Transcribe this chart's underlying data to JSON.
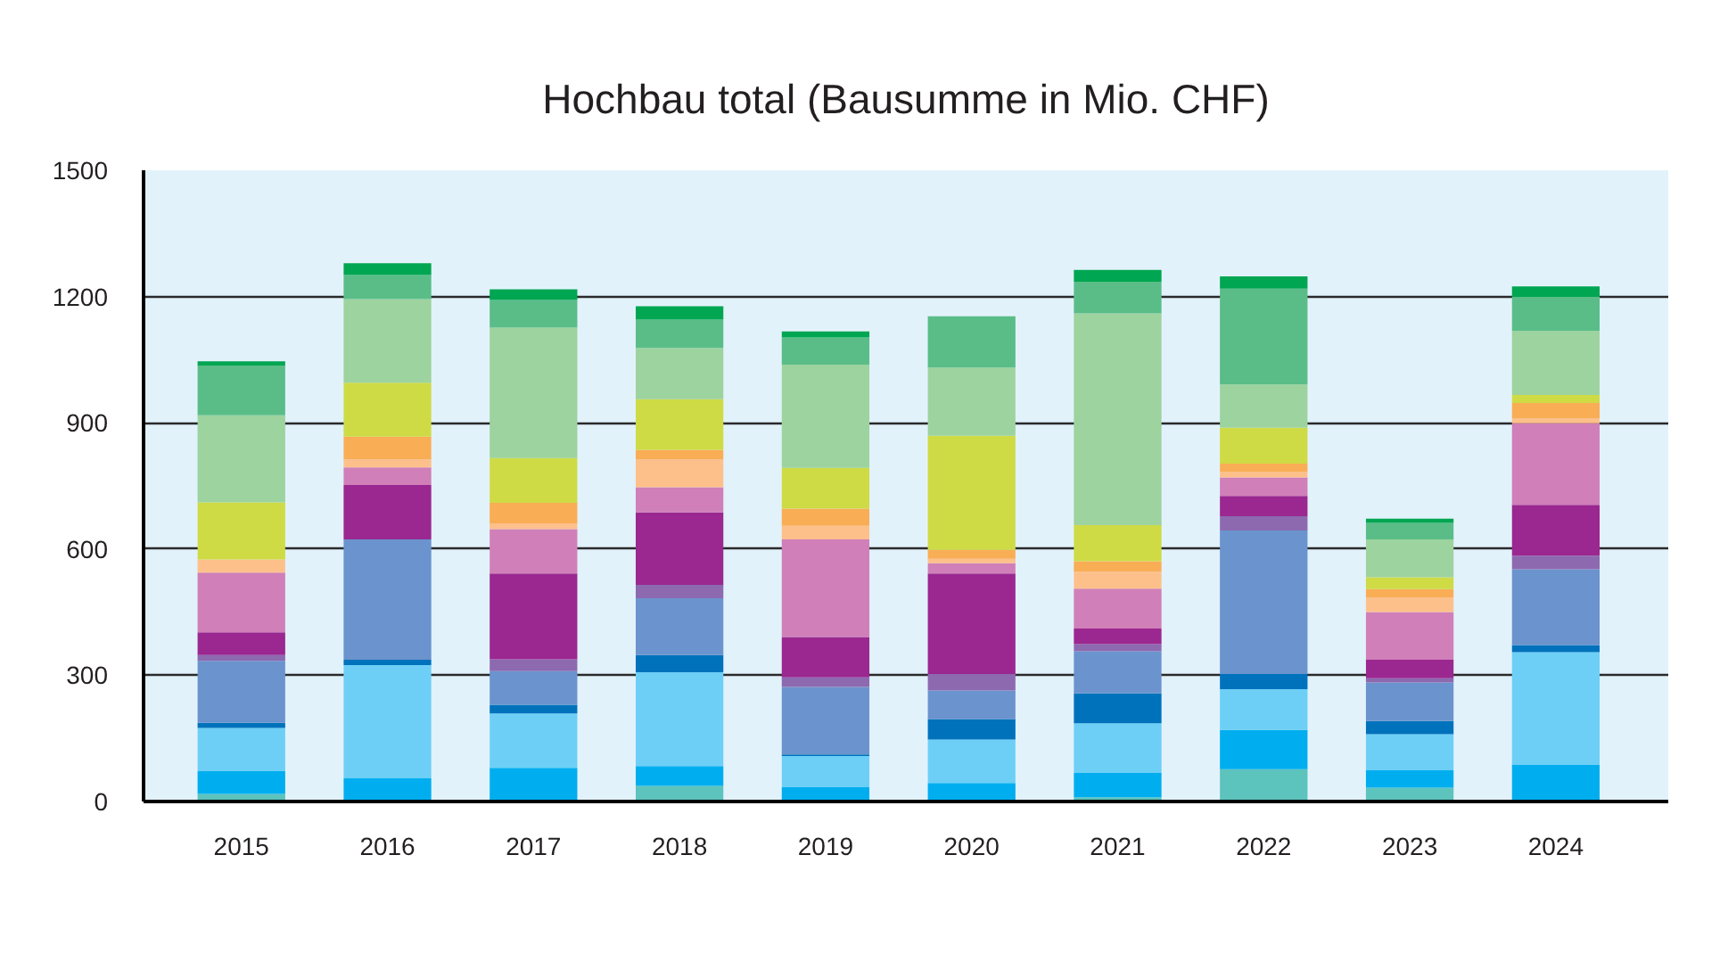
{
  "chart_data": {
    "type": "bar",
    "title": "Hochbau total (Bausumme in Mio. CHF)",
    "stacked": true,
    "categories": [
      "2015",
      "2016",
      "2017",
      "2018",
      "2019",
      "2020",
      "2021",
      "2022",
      "2023",
      "2024"
    ],
    "ylim": [
      0,
      1500
    ],
    "yticks": [
      0,
      300,
      600,
      900,
      1200,
      1500
    ],
    "grid": "y",
    "series": [
      {
        "color": "#5cc3bd",
        "values": [
          18,
          null,
          null,
          37,
          null,
          null,
          10,
          77,
          33,
          null
        ]
      },
      {
        "color": "#00aeef",
        "values": [
          55,
          55,
          80,
          47,
          34,
          44,
          58,
          93,
          41,
          88
        ]
      },
      {
        "color": "#6dcff6",
        "values": [
          102,
          269,
          129,
          223,
          74,
          103,
          118,
          97,
          86,
          267
        ]
      },
      {
        "color": "#0072bc",
        "values": [
          12,
          13,
          21,
          41,
          4,
          49,
          71,
          36,
          31,
          17
        ]
      },
      {
        "color": "#6b93cd",
        "values": [
          147,
          286,
          80,
          135,
          160,
          68,
          100,
          341,
          92,
          180
        ]
      },
      {
        "color": "#8d69b0",
        "values": [
          14,
          null,
          28,
          32,
          23,
          39,
          17,
          34,
          10,
          32
        ]
      },
      {
        "color": "#9b2790",
        "values": [
          54,
          129,
          204,
          172,
          96,
          239,
          37,
          48,
          44,
          121
        ]
      },
      {
        "color": "#d07fb8",
        "values": [
          142,
          42,
          105,
          60,
          232,
          24,
          95,
          44,
          113,
          194
        ]
      },
      {
        "color": "#fdc08b",
        "values": [
          31,
          19,
          14,
          66,
          32,
          11,
          40,
          13,
          34,
          11
        ]
      },
      {
        "color": "#f9ad55",
        "values": [
          null,
          54,
          49,
          23,
          41,
          21,
          25,
          20,
          21,
          37
        ]
      },
      {
        "color": "#cedb45",
        "values": [
          136,
          128,
          106,
          120,
          97,
          271,
          86,
          85,
          28,
          19
        ]
      },
      {
        "color": "#9dd39e",
        "values": [
          207,
          199,
          310,
          122,
          245,
          162,
          503,
          103,
          90,
          152
        ]
      },
      {
        "color": "#5abd88",
        "values": [
          118,
          57,
          66,
          67,
          65,
          122,
          75,
          228,
          39,
          81
        ]
      },
      {
        "color": "#00a651",
        "values": [
          10,
          28,
          25,
          32,
          14,
          null,
          28,
          29,
          10,
          25
        ]
      }
    ]
  }
}
